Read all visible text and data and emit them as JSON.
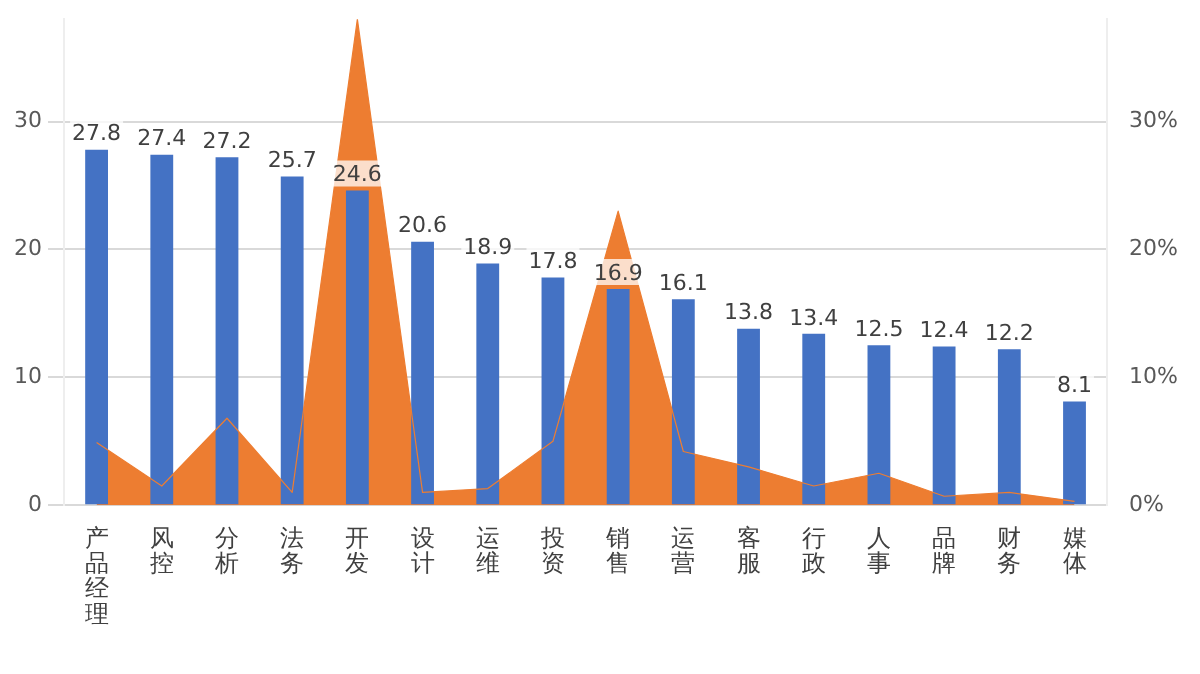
{
  "chart_data": {
    "type": "bar",
    "categories": [
      "产品经理",
      "风控",
      "分析",
      "法务",
      "开发",
      "设计",
      "运维",
      "投资",
      "销售",
      "运营",
      "客服",
      "行政",
      "人事",
      "品牌",
      "财务",
      "媒体"
    ],
    "series": [
      {
        "color": "#4472c4",
        "values": [
          27.8,
          27.4,
          27.2,
          25.7,
          24.6,
          20.6,
          18.9,
          17.8,
          16.9,
          16.1,
          13.8,
          13.4,
          12.5,
          12.4,
          12.2,
          8.1
        ],
        "data_labels": true
      },
      {
        "type": "area",
        "axis": "y2",
        "color": "#ed7d31",
        "values": [
          4.9,
          1.5,
          6.8,
          1,
          38,
          1,
          1.3,
          5,
          23,
          4.2,
          3,
          1.5,
          2.5,
          0.7,
          1,
          0.3
        ]
      }
    ],
    "ylim": [
      0,
      38
    ],
    "yticks": [
      0,
      10,
      20,
      30
    ],
    "y2lim": [
      0,
      38
    ],
    "y2ticks": [
      {
        "value": 0,
        "label": "0%"
      },
      {
        "value": 10,
        "label": "10%"
      },
      {
        "value": 20,
        "label": "20%"
      },
      {
        "value": 30,
        "label": "30%"
      }
    ],
    "grid": "y",
    "legend": false
  }
}
